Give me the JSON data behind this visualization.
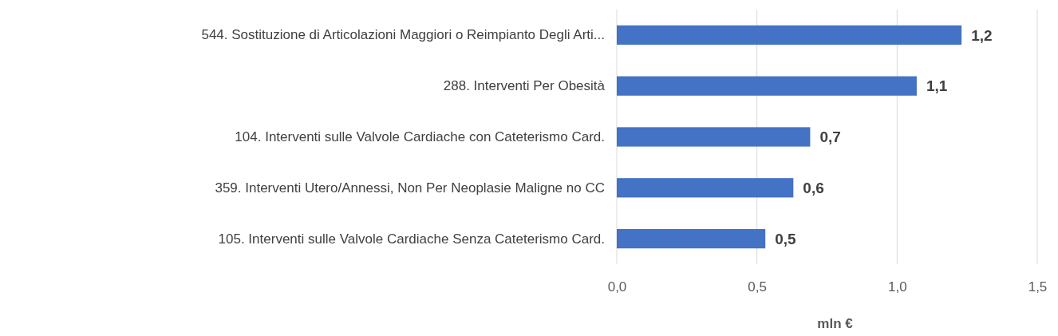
{
  "chart_data": {
    "type": "bar",
    "orientation": "horizontal",
    "xlabel": "mln €",
    "categories": [
      "544. Sostituzione di Articolazioni Maggiori o Reimpianto Degli Arti...",
      "288. Interventi Per Obesità",
      "104. Interventi sulle Valvole Cardiache con Cateterismo Card.",
      "359. Interventi Utero/Annessi, Non Per Neoplasie Maligne no CC",
      "105. Interventi sulle Valvole Cardiache Senza Cateterismo Card."
    ],
    "values": [
      1.23,
      1.07,
      0.69,
      0.63,
      0.53
    ],
    "value_labels": [
      "1,2",
      "1,1",
      "0,7",
      "0,6",
      "0,5"
    ],
    "color": "#4472c4",
    "xlim": [
      0,
      1.5
    ],
    "xticks": [
      {
        "value": 0,
        "label": "0,0"
      },
      {
        "value": 0.5,
        "label": "0,5"
      },
      {
        "value": 1,
        "label": "1,0"
      },
      {
        "value": 1.5,
        "label": "1,5"
      }
    ],
    "grid": "x"
  }
}
